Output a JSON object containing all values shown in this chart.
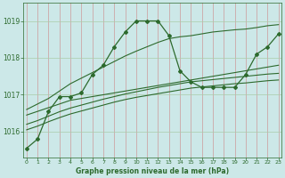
{
  "background_color": "#cce8e8",
  "vgrid_color": "#cc9999",
  "hgrid_color": "#aaccaa",
  "line_color": "#2d6a2d",
  "x_ticks": [
    0,
    1,
    2,
    3,
    4,
    5,
    6,
    7,
    8,
    9,
    10,
    11,
    12,
    13,
    14,
    15,
    16,
    17,
    18,
    19,
    20,
    21,
    22,
    23
  ],
  "y_ticks": [
    1016,
    1017,
    1018,
    1019
  ],
  "ylim": [
    1015.3,
    1019.5
  ],
  "xlim": [
    -0.3,
    23.3
  ],
  "xlabel": "Graphe pression niveau de la mer (hPa)",
  "series": {
    "main": [
      1015.55,
      1015.8,
      1016.55,
      1016.95,
      1016.95,
      1017.05,
      1017.55,
      1017.8,
      1018.3,
      1018.7,
      1019.0,
      1019.0,
      1019.0,
      1018.6,
      1017.65,
      1017.35,
      1017.2,
      1017.2,
      1017.2,
      1017.2,
      1017.55,
      1018.1,
      1018.3,
      1018.65
    ],
    "line1": [
      1016.45,
      1016.55,
      1016.65,
      1016.75,
      1016.85,
      1016.9,
      1016.95,
      1017.0,
      1017.05,
      1017.1,
      1017.15,
      1017.2,
      1017.25,
      1017.3,
      1017.35,
      1017.4,
      1017.45,
      1017.5,
      1017.55,
      1017.6,
      1017.65,
      1017.7,
      1017.75,
      1017.8
    ],
    "line2": [
      1016.2,
      1016.3,
      1016.42,
      1016.54,
      1016.64,
      1016.72,
      1016.8,
      1016.88,
      1016.95,
      1017.02,
      1017.08,
      1017.14,
      1017.2,
      1017.25,
      1017.3,
      1017.35,
      1017.38,
      1017.41,
      1017.44,
      1017.47,
      1017.5,
      1017.53,
      1017.56,
      1017.58
    ],
    "line3": [
      1016.05,
      1016.15,
      1016.27,
      1016.38,
      1016.48,
      1016.56,
      1016.64,
      1016.72,
      1016.8,
      1016.87,
      1016.93,
      1016.98,
      1017.03,
      1017.08,
      1017.13,
      1017.18,
      1017.21,
      1017.24,
      1017.27,
      1017.3,
      1017.32,
      1017.35,
      1017.38,
      1017.4
    ],
    "line_top": [
      1016.6,
      1016.75,
      1016.9,
      1017.1,
      1017.3,
      1017.45,
      1017.6,
      1017.75,
      1017.9,
      1018.05,
      1018.18,
      1018.3,
      1018.42,
      1018.52,
      1018.57,
      1018.6,
      1018.65,
      1018.7,
      1018.73,
      1018.76,
      1018.78,
      1018.82,
      1018.87,
      1018.9
    ]
  }
}
